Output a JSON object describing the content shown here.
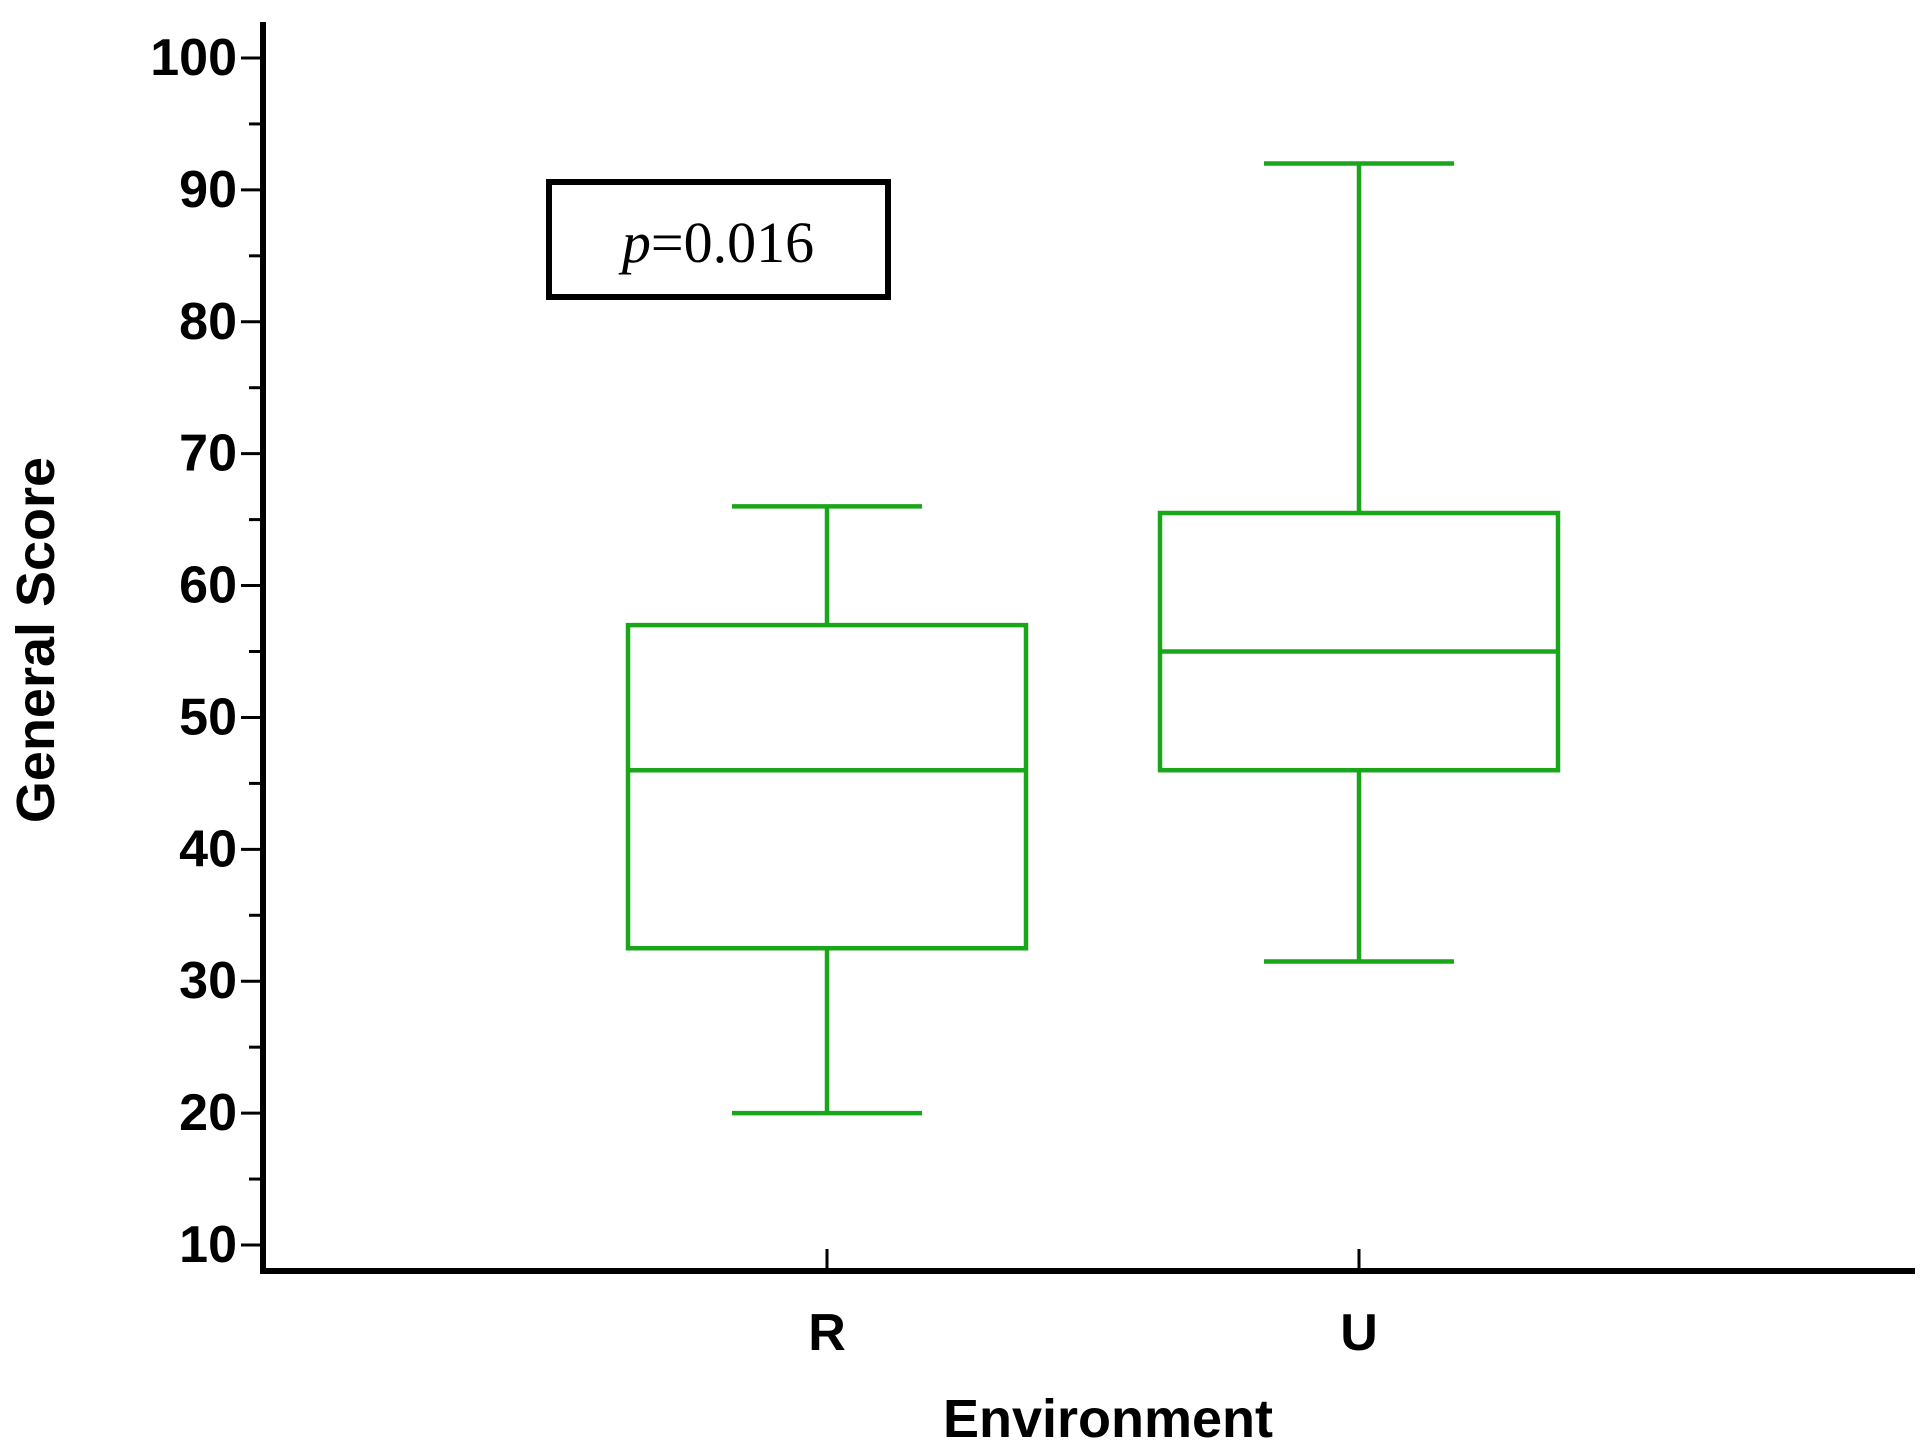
{
  "chart_data": {
    "type": "boxplot",
    "xlabel": "Environment",
    "ylabel": "General Score",
    "ylim": [
      10,
      100
    ],
    "y_ticks": [
      "10",
      "20",
      "30",
      "40",
      "50",
      "60",
      "70",
      "80",
      "90",
      "100"
    ],
    "categories": [
      "R",
      "U"
    ],
    "boxes": [
      {
        "category": "R",
        "whisker_low": 20,
        "q1": 32.5,
        "median": 46,
        "q3": 57,
        "whisker_high": 66
      },
      {
        "category": "U",
        "whisker_low": 31.5,
        "q1": 46,
        "median": 55,
        "q3": 65.5,
        "whisker_high": 92
      }
    ],
    "annotation": {
      "p_symbol": "p",
      "p_value": "=0.016"
    },
    "colors": {
      "box": "#1aa61a",
      "axis": "#000000"
    }
  }
}
